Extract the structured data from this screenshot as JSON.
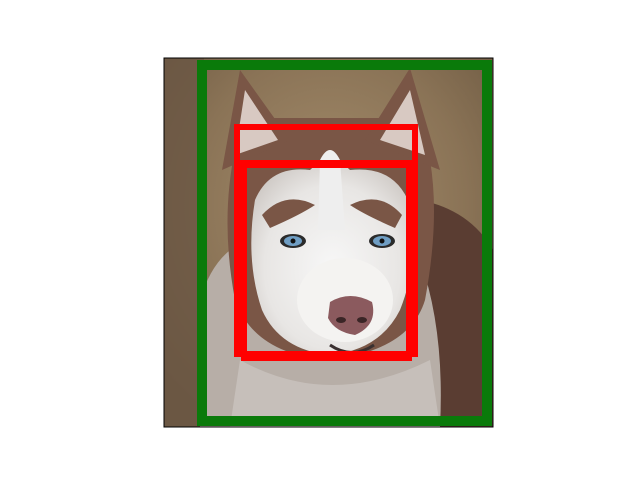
{
  "figure": {
    "subject": "dog",
    "image_frame_color": "#000000",
    "palette": {
      "background_ground": "#8a7356",
      "ground_dark": "#6e5a42",
      "ground_light": "#a58d6c",
      "fur_brown": "#7a5646",
      "fur_dark": "#5a3d32",
      "fur_white": "#eeeeee",
      "fur_grey": "#c9c4c0",
      "eye_blue": "#6f9ec4",
      "nose": "#8b5a5e",
      "ear_inner": "#d8c9c2"
    },
    "boxes": [
      {
        "label": "green-box",
        "color": "#0a7a0a"
      },
      {
        "label": "red-box-1",
        "color": "#ff0000"
      },
      {
        "label": "red-box-2",
        "color": "#ff0000"
      },
      {
        "label": "red-box-3",
        "color": "#ff0000"
      }
    ]
  }
}
